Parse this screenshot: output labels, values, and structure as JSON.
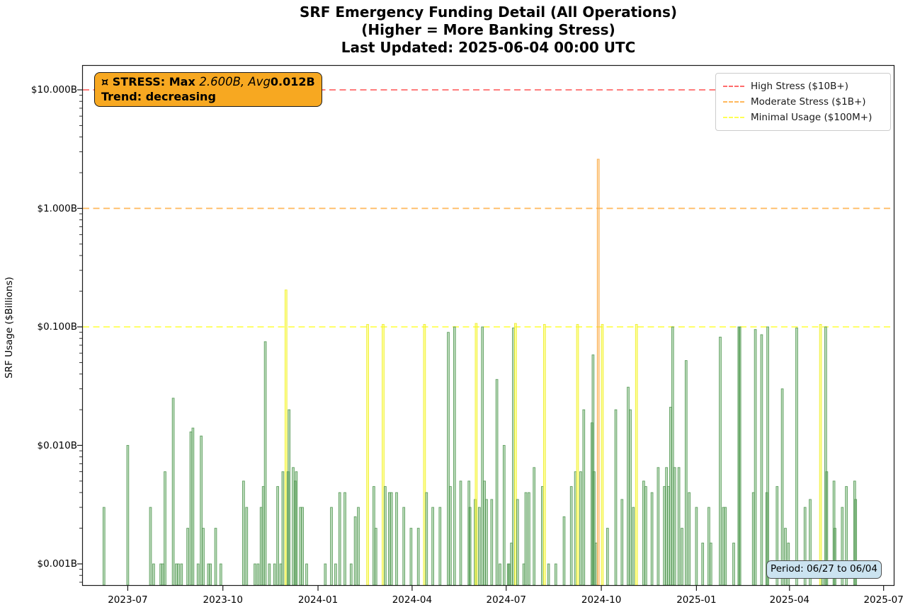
{
  "title": {
    "line1": "SRF Emergency Funding Detail (All Operations)",
    "line2": "(Higher = More Banking Stress)",
    "line3": "Last Updated: 2025-06-04 00:00 UTC"
  },
  "stress_box": {
    "line1_prefix": "¤ STRESS: Max ",
    "line1_math": "2.600B, Avg",
    "line1_suffix": "0.012B",
    "line2": "Trend: decreasing",
    "bg_color": "#f7a821"
  },
  "legend": {
    "items": [
      {
        "label": "High Stress ($10B+)",
        "color": "#ff6b6b",
        "value": 10
      },
      {
        "label": "Moderate Stress ($1B+)",
        "color": "#ffb85c",
        "value": 1
      },
      {
        "label": "Minimal Usage ($100M+)",
        "color": "#ffff54",
        "value": 0.1
      }
    ]
  },
  "period_badge": {
    "text": "Period: 06/27 to 06/04"
  },
  "axes": {
    "ylabel": "SRF Usage ($Billions)",
    "x_ticks": [
      "2023-07",
      "2023-10",
      "2024-01",
      "2024-04",
      "2024-07",
      "2024-10",
      "2025-01",
      "2025-04",
      "2025-07"
    ],
    "y_ticks": [
      {
        "label": "$10.000B",
        "value": 10
      },
      {
        "label": "$1.000B",
        "value": 1
      },
      {
        "label": "$0.100B",
        "value": 0.1
      },
      {
        "label": "$0.010B",
        "value": 0.01
      },
      {
        "label": "$0.001B",
        "value": 0.001
      }
    ]
  },
  "bar_styles": {
    "green": {
      "fill": "rgba(96,170,96,0.42)",
      "edge": "rgba(74,146,74,0.85)"
    },
    "yellow": {
      "fill": "rgba(255,255,70,0.55)",
      "edge": "rgba(235,235,40,0.9)"
    },
    "orange": {
      "fill": "rgba(255,180,80,0.45)",
      "edge": "rgba(248,164,60,0.9)"
    }
  },
  "chart_data": {
    "type": "bar",
    "title": "SRF Emergency Funding Detail (All Operations)",
    "ylabel": "SRF Usage ($Billions)",
    "yscale": "log",
    "ylim": [
      0.00065,
      16
    ],
    "xlim": [
      "2023-05-16",
      "2025-07-12"
    ],
    "grid": false,
    "legend_position": "upper right",
    "stats": {
      "max_billions": 2.6,
      "avg_billions": 0.012,
      "trend": "decreasing"
    },
    "thresholds": [
      {
        "name": "High Stress",
        "value": 10,
        "color": "#ff6b6b"
      },
      {
        "name": "Moderate Stress",
        "value": 1,
        "color": "#ffb85c"
      },
      {
        "name": "Minimal Usage",
        "value": 0.1,
        "color": "#ffff54"
      }
    ],
    "series_name": "SRF daily operation usage ($B)",
    "bars": [
      [
        "2023-06-08",
        0.003,
        "green"
      ],
      [
        "2023-07-01",
        0.01,
        "green"
      ],
      [
        "2023-07-23",
        0.003,
        "green"
      ],
      [
        "2023-07-26",
        0.001,
        "green"
      ],
      [
        "2023-08-02",
        0.001,
        "green"
      ],
      [
        "2023-08-04",
        0.001,
        "green"
      ],
      [
        "2023-08-06",
        0.006,
        "green"
      ],
      [
        "2023-08-14",
        0.025,
        "green"
      ],
      [
        "2023-08-17",
        0.001,
        "green"
      ],
      [
        "2023-08-19",
        0.001,
        "green"
      ],
      [
        "2023-08-22",
        0.001,
        "green"
      ],
      [
        "2023-08-28",
        0.002,
        "green"
      ],
      [
        "2023-08-31",
        0.013,
        "green"
      ],
      [
        "2023-09-02",
        0.014,
        "green"
      ],
      [
        "2023-09-07",
        0.001,
        "green"
      ],
      [
        "2023-09-10",
        0.012,
        "green"
      ],
      [
        "2023-09-12",
        0.002,
        "green"
      ],
      [
        "2023-09-17",
        0.001,
        "green"
      ],
      [
        "2023-09-19",
        0.001,
        "green"
      ],
      [
        "2023-09-24",
        0.002,
        "green"
      ],
      [
        "2023-09-29",
        0.001,
        "green"
      ],
      [
        "2023-10-21",
        0.005,
        "green"
      ],
      [
        "2023-10-24",
        0.003,
        "green"
      ],
      [
        "2023-11-01",
        0.001,
        "green"
      ],
      [
        "2023-11-04",
        0.001,
        "green"
      ],
      [
        "2023-11-07",
        0.003,
        "green"
      ],
      [
        "2023-11-09",
        0.0045,
        "green"
      ],
      [
        "2023-11-11",
        0.075,
        "green"
      ],
      [
        "2023-11-15",
        0.001,
        "green"
      ],
      [
        "2023-11-20",
        0.001,
        "green"
      ],
      [
        "2023-11-23",
        0.0045,
        "green"
      ],
      [
        "2023-11-26",
        0.001,
        "green"
      ],
      [
        "2023-11-28",
        0.006,
        "green"
      ],
      [
        "2023-12-01",
        0.205,
        "yellow"
      ],
      [
        "2023-12-03",
        0.006,
        "green"
      ],
      [
        "2023-12-04",
        0.02,
        "green"
      ],
      [
        "2023-12-08",
        0.0065,
        "green"
      ],
      [
        "2023-12-10",
        0.005,
        "green"
      ],
      [
        "2023-12-11",
        0.006,
        "green"
      ],
      [
        "2023-12-15",
        0.003,
        "green"
      ],
      [
        "2023-12-17",
        0.003,
        "green"
      ],
      [
        "2023-12-21",
        0.001,
        "green"
      ],
      [
        "2024-01-08",
        0.001,
        "green"
      ],
      [
        "2024-01-14",
        0.003,
        "green"
      ],
      [
        "2024-01-18",
        0.001,
        "green"
      ],
      [
        "2024-01-22",
        0.004,
        "green"
      ],
      [
        "2024-01-27",
        0.004,
        "green"
      ],
      [
        "2024-02-02",
        0.001,
        "green"
      ],
      [
        "2024-02-06",
        0.0025,
        "green"
      ],
      [
        "2024-02-09",
        0.003,
        "green"
      ],
      [
        "2024-02-18",
        0.105,
        "yellow"
      ],
      [
        "2024-02-24",
        0.0045,
        "green"
      ],
      [
        "2024-02-26",
        0.002,
        "green"
      ],
      [
        "2024-03-04",
        0.105,
        "yellow"
      ],
      [
        "2024-03-06",
        0.0045,
        "green"
      ],
      [
        "2024-03-10",
        0.004,
        "green"
      ],
      [
        "2024-03-12",
        0.004,
        "green"
      ],
      [
        "2024-03-17",
        0.004,
        "green"
      ],
      [
        "2024-03-24",
        0.003,
        "green"
      ],
      [
        "2024-03-31",
        0.002,
        "green"
      ],
      [
        "2024-04-07",
        0.002,
        "green"
      ],
      [
        "2024-04-13",
        0.105,
        "yellow"
      ],
      [
        "2024-04-15",
        0.004,
        "green"
      ],
      [
        "2024-04-21",
        0.003,
        "green"
      ],
      [
        "2024-04-28",
        0.003,
        "green"
      ],
      [
        "2024-05-06",
        0.09,
        "green"
      ],
      [
        "2024-05-08",
        0.0045,
        "green"
      ],
      [
        "2024-05-12",
        0.1,
        "green"
      ],
      [
        "2024-05-18",
        0.005,
        "green"
      ],
      [
        "2024-05-26",
        0.005,
        "green"
      ],
      [
        "2024-05-27",
        0.003,
        "green"
      ],
      [
        "2024-06-01",
        0.0035,
        "green"
      ],
      [
        "2024-06-02",
        0.107,
        "yellow"
      ],
      [
        "2024-06-05",
        0.003,
        "green"
      ],
      [
        "2024-06-08",
        0.1,
        "green"
      ],
      [
        "2024-06-10",
        0.005,
        "green"
      ],
      [
        "2024-06-12",
        0.0035,
        "green"
      ],
      [
        "2024-06-17",
        0.0035,
        "green"
      ],
      [
        "2024-06-22",
        0.036,
        "green"
      ],
      [
        "2024-06-25",
        0.001,
        "green"
      ],
      [
        "2024-06-29",
        0.01,
        "green"
      ],
      [
        "2024-07-03",
        0.001,
        "green"
      ],
      [
        "2024-07-04",
        0.001,
        "green"
      ],
      [
        "2024-07-06",
        0.0015,
        "green"
      ],
      [
        "2024-07-08",
        0.098,
        "green"
      ],
      [
        "2024-07-10",
        0.107,
        "yellow"
      ],
      [
        "2024-07-12",
        0.0035,
        "green"
      ],
      [
        "2024-07-18",
        0.001,
        "green"
      ],
      [
        "2024-07-20",
        0.004,
        "green"
      ],
      [
        "2024-07-23",
        0.004,
        "green"
      ],
      [
        "2024-07-28",
        0.0065,
        "green"
      ],
      [
        "2024-08-05",
        0.0045,
        "green"
      ],
      [
        "2024-08-07",
        0.105,
        "yellow"
      ],
      [
        "2024-08-11",
        0.001,
        "green"
      ],
      [
        "2024-08-18",
        0.001,
        "green"
      ],
      [
        "2024-08-26",
        0.0025,
        "green"
      ],
      [
        "2024-09-02",
        0.0045,
        "green"
      ],
      [
        "2024-09-06",
        0.006,
        "green"
      ],
      [
        "2024-09-08",
        0.105,
        "yellow"
      ],
      [
        "2024-09-11",
        0.006,
        "green"
      ],
      [
        "2024-09-14",
        0.02,
        "green"
      ],
      [
        "2024-09-22",
        0.0155,
        "green"
      ],
      [
        "2024-09-23",
        0.058,
        "green"
      ],
      [
        "2024-09-24",
        0.006,
        "green"
      ],
      [
        "2024-09-26",
        0.0015,
        "green"
      ],
      [
        "2024-09-28",
        2.6,
        "orange"
      ],
      [
        "2024-10-02",
        0.105,
        "yellow"
      ],
      [
        "2024-10-07",
        0.002,
        "green"
      ],
      [
        "2024-10-15",
        0.02,
        "green"
      ],
      [
        "2024-10-21",
        0.0035,
        "green"
      ],
      [
        "2024-10-27",
        0.031,
        "green"
      ],
      [
        "2024-10-29",
        0.02,
        "green"
      ],
      [
        "2024-11-01",
        0.003,
        "green"
      ],
      [
        "2024-11-04",
        0.105,
        "yellow"
      ],
      [
        "2024-11-11",
        0.005,
        "green"
      ],
      [
        "2024-11-13",
        0.0045,
        "green"
      ],
      [
        "2024-11-19",
        0.004,
        "green"
      ],
      [
        "2024-11-25",
        0.0065,
        "green"
      ],
      [
        "2024-12-01",
        0.0045,
        "green"
      ],
      [
        "2024-12-03",
        0.0065,
        "green"
      ],
      [
        "2024-12-05",
        0.0045,
        "green"
      ],
      [
        "2024-12-07",
        0.021,
        "green"
      ],
      [
        "2024-12-09",
        0.1,
        "green"
      ],
      [
        "2024-12-11",
        0.0065,
        "green"
      ],
      [
        "2024-12-15",
        0.0065,
        "green"
      ],
      [
        "2024-12-18",
        0.002,
        "green"
      ],
      [
        "2024-12-22",
        0.052,
        "green"
      ],
      [
        "2024-12-25",
        0.004,
        "green"
      ],
      [
        "2025-01-01",
        0.003,
        "green"
      ],
      [
        "2025-01-07",
        0.0015,
        "green"
      ],
      [
        "2025-01-13",
        0.003,
        "green"
      ],
      [
        "2025-01-15",
        0.0015,
        "green"
      ],
      [
        "2025-01-24",
        0.082,
        "green"
      ],
      [
        "2025-01-27",
        0.003,
        "green"
      ],
      [
        "2025-01-29",
        0.003,
        "green"
      ],
      [
        "2025-02-06",
        0.0015,
        "green"
      ],
      [
        "2025-02-11",
        0.1,
        "green"
      ],
      [
        "2025-02-12",
        0.1,
        "green"
      ],
      [
        "2025-02-25",
        0.004,
        "green"
      ],
      [
        "2025-02-27",
        0.095,
        "green"
      ],
      [
        "2025-03-05",
        0.086,
        "green"
      ],
      [
        "2025-03-10",
        0.004,
        "green"
      ],
      [
        "2025-03-11",
        0.1,
        "green"
      ],
      [
        "2025-03-20",
        0.0045,
        "green"
      ],
      [
        "2025-03-25",
        0.03,
        "green"
      ],
      [
        "2025-03-28",
        0.002,
        "green"
      ],
      [
        "2025-03-31",
        0.0015,
        "green"
      ],
      [
        "2025-04-08",
        0.098,
        "green"
      ],
      [
        "2025-04-16",
        0.003,
        "green"
      ],
      [
        "2025-04-21",
        0.0035,
        "green"
      ],
      [
        "2025-05-01",
        0.105,
        "yellow"
      ],
      [
        "2025-05-03",
        0.001,
        "green"
      ],
      [
        "2025-05-06",
        0.1,
        "green"
      ],
      [
        "2025-05-07",
        0.006,
        "green"
      ],
      [
        "2025-05-14",
        0.005,
        "green"
      ],
      [
        "2025-05-15",
        0.002,
        "green"
      ],
      [
        "2025-05-22",
        0.003,
        "green"
      ],
      [
        "2025-05-26",
        0.0045,
        "green"
      ],
      [
        "2025-06-03",
        0.005,
        "green"
      ],
      [
        "2025-06-04",
        0.0035,
        "green"
      ]
    ]
  }
}
